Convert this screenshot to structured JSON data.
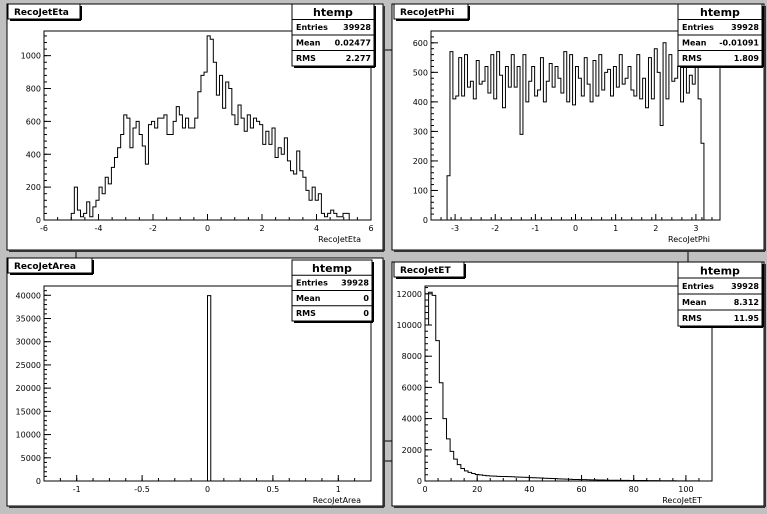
{
  "chart_data": [
    {
      "type": "histogram",
      "title": "RecoJetEta",
      "xlabel": "RecoJetEta",
      "xlim": [
        -6,
        6
      ],
      "ylim": [
        0,
        1150
      ],
      "xticks": [
        "-6",
        "-4",
        "-2",
        "0",
        "2",
        "4",
        "6"
      ],
      "xtick_values": [
        -6,
        -4,
        -2,
        0,
        2,
        4,
        6
      ],
      "yticks": [
        "0",
        "200",
        "400",
        "600",
        "800",
        "1000"
      ],
      "ytick_values": [
        0,
        200,
        400,
        600,
        800,
        1000
      ],
      "bin_range": [
        -5.0,
        5.2
      ],
      "values": [
        40,
        200,
        60,
        20,
        40,
        110,
        20,
        80,
        120,
        200,
        160,
        260,
        220,
        320,
        380,
        440,
        520,
        640,
        620,
        440,
        560,
        600,
        520,
        450,
        340,
        580,
        600,
        560,
        620,
        620,
        640,
        520,
        520,
        600,
        690,
        640,
        560,
        620,
        560,
        560,
        620,
        780,
        880,
        900,
        1120,
        1100,
        960,
        760,
        880,
        680,
        840,
        800,
        640,
        580,
        700,
        620,
        540,
        640,
        560,
        620,
        600,
        580,
        460,
        540,
        460,
        560,
        380,
        440,
        400,
        500,
        360,
        300,
        280,
        420,
        300,
        260,
        180,
        120,
        200,
        120,
        160,
        40,
        20,
        40,
        60,
        40,
        20,
        20,
        40,
        40
      ],
      "stats": {
        "title": "htemp",
        "entries": "39928",
        "mean": "0.02477",
        "rms": "2.277"
      }
    },
    {
      "type": "histogram",
      "title": "RecoJetPhi",
      "xlabel": "RecoJetPhi",
      "xlim": [
        -3.6,
        3.6
      ],
      "ylim": [
        0,
        640
      ],
      "xticks": [
        "-3",
        "-2",
        "-1",
        "0",
        "1",
        "2",
        "3"
      ],
      "xtick_values": [
        -3,
        -2,
        -1,
        0,
        1,
        2,
        3
      ],
      "yticks": [
        "0",
        "100",
        "200",
        "300",
        "400",
        "500",
        "600"
      ],
      "ytick_values": [
        0,
        100,
        200,
        300,
        400,
        500,
        600
      ],
      "bin_range": [
        -3.2,
        3.2
      ],
      "values": [
        150,
        570,
        410,
        420,
        550,
        420,
        560,
        450,
        470,
        410,
        540,
        460,
        470,
        520,
        430,
        560,
        410,
        570,
        490,
        380,
        520,
        450,
        560,
        450,
        520,
        290,
        560,
        400,
        470,
        520,
        420,
        440,
        550,
        400,
        470,
        530,
        450,
        520,
        480,
        430,
        570,
        400,
        560,
        390,
        520,
        480,
        420,
        550,
        460,
        400,
        540,
        420,
        560,
        440,
        500,
        510,
        420,
        520,
        450,
        560,
        460,
        480,
        520,
        440,
        420,
        560,
        410,
        480,
        380,
        550,
        410,
        580,
        500,
        320,
        600,
        410,
        560,
        470,
        480,
        520,
        400,
        560,
        430,
        490,
        460,
        570,
        410,
        260
      ],
      "stats": {
        "title": "htemp",
        "entries": "39928",
        "mean": "-0.01091",
        "rms": "1.809"
      }
    },
    {
      "type": "histogram",
      "title": "RecoJetArea",
      "xlabel": "RecoJetArea",
      "xlim": [
        -1.25,
        1.25
      ],
      "ylim": [
        0,
        42000
      ],
      "xticks": [
        "-1",
        "-0.5",
        "0",
        "0.5",
        "1"
      ],
      "xtick_values": [
        -1,
        -0.5,
        0,
        0.5,
        1
      ],
      "yticks": [
        "0",
        "5000",
        "10000",
        "15000",
        "20000",
        "25000",
        "30000",
        "35000",
        "40000"
      ],
      "ytick_values": [
        0,
        5000,
        10000,
        15000,
        20000,
        25000,
        30000,
        35000,
        40000
      ],
      "bin_range": [
        0.0,
        0.025
      ],
      "values": [
        39928
      ],
      "stats": {
        "title": "htemp",
        "entries": "39928",
        "mean": "0",
        "rms": "0"
      }
    },
    {
      "type": "histogram",
      "title": "RecoJetET",
      "xlabel": "RecoJetET",
      "xlim": [
        0,
        110
      ],
      "ylim": [
        0,
        12500
      ],
      "xticks": [
        "0",
        "20",
        "40",
        "60",
        "80",
        "100"
      ],
      "xtick_values": [
        0,
        20,
        40,
        60,
        80,
        100
      ],
      "yticks": [
        "0",
        "2000",
        "4000",
        "6000",
        "8000",
        "10000",
        "12000"
      ],
      "ytick_values": [
        0,
        2000,
        4000,
        6000,
        8000,
        10000,
        12000
      ],
      "bin_range": [
        0,
        110
      ],
      "values": [
        10000,
        12100,
        11900,
        9000,
        6300,
        4000,
        2700,
        1900,
        1400,
        1050,
        800,
        650,
        550,
        480,
        420,
        390,
        360,
        340,
        320,
        310,
        300,
        290,
        285,
        280,
        270,
        260,
        250,
        240,
        230,
        220,
        210,
        200,
        190,
        180,
        170,
        160,
        150,
        140,
        130,
        120,
        110,
        100,
        95,
        90,
        85,
        80,
        75,
        70,
        65,
        60,
        55,
        50,
        48,
        45,
        42,
        40,
        38,
        36,
        34,
        32,
        30,
        28,
        26,
        24,
        22,
        20,
        18,
        16,
        14,
        12,
        10,
        9,
        8,
        7,
        6,
        5,
        4,
        3,
        2,
        1
      ],
      "stats": {
        "title": "htemp",
        "entries": "39928",
        "mean": "8.312",
        "rms": "11.95"
      }
    }
  ]
}
